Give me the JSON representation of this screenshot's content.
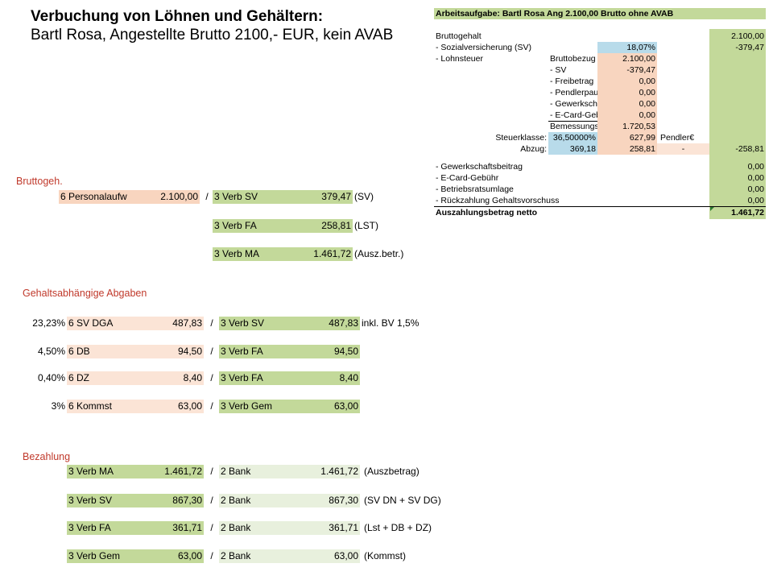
{
  "title": {
    "line1": "Verbuchung von Löhnen und Gehältern:",
    "line2": "Bartl Rosa, Angestellte Brutto 2100,- EUR, kein AVAB"
  },
  "colors": {
    "peach": "#f8d5bf",
    "green": "#c3d99a",
    "blue": "#b8dbea",
    "section": "#c0392b"
  },
  "bruttogehalt": {
    "heading": "Bruttogeh.",
    "debit": {
      "account": "6 Personalaufw",
      "amount": "2.100,00"
    },
    "sep": "/",
    "credits": [
      {
        "account": "3 Verb SV",
        "amount": "379,47",
        "note": "(SV)"
      },
      {
        "account": "3 Verb FA",
        "amount": "258,81",
        "note": "(LST)"
      },
      {
        "account": "3 Verb MA",
        "amount": "1.461,72",
        "note": "(Ausz.betr.)"
      }
    ]
  },
  "abgaben": {
    "heading": "Gehaltsabhängige Abgaben",
    "rows": [
      {
        "rate": "23,23%",
        "debit": "6 SV DGA",
        "debit_amount": "487,83",
        "sep": "/",
        "credit": "3 Verb SV",
        "credit_amount": "487,83",
        "note": "inkl. BV 1,5%"
      },
      {
        "rate": "4,50%",
        "debit": "6 DB",
        "debit_amount": "94,50",
        "sep": "/",
        "credit": "3 Verb FA",
        "credit_amount": "94,50",
        "note": ""
      },
      {
        "rate": "0,40%",
        "debit": "6 DZ",
        "debit_amount": "8,40",
        "sep": "/",
        "credit": "3 Verb FA",
        "credit_amount": "8,40",
        "note": ""
      },
      {
        "rate": "3%",
        "debit": "6 Kommst",
        "debit_amount": "63,00",
        "sep": "/",
        "credit": "3 Verb Gem",
        "credit_amount": "63,00",
        "note": ""
      }
    ]
  },
  "bezahlung": {
    "heading": "Bezahlung",
    "rows": [
      {
        "debit": "3 Verb MA",
        "debit_amount": "1.461,72",
        "sep": "/",
        "credit": "2 Bank",
        "credit_amount": "1.461,72",
        "note": "(Auszbetrag)"
      },
      {
        "debit": "3 Verb SV",
        "debit_amount": "867,30",
        "sep": "/",
        "credit": "2 Bank",
        "credit_amount": "867,30",
        "note": "(SV DN + SV DG)"
      },
      {
        "debit": "3 Verb FA",
        "debit_amount": "361,71",
        "sep": "/",
        "credit": "2 Bank",
        "credit_amount": "361,71",
        "note": "(Lst + DB + DZ)"
      },
      {
        "debit": "3 Verb Gem",
        "debit_amount": "63,00",
        "sep": "/",
        "credit": "2 Bank",
        "credit_amount": "63,00",
        "note": "(Kommst)"
      }
    ]
  },
  "worksheet": {
    "header": "Arbeitsaufgabe: Bartl Rosa Ang 2.100,00 Brutto ohne AVAB",
    "bruttogehalt_label": "Bruttogehalt",
    "bruttogehalt_value": "2.100,00",
    "sv_label": "- Sozialversicherung (SV)",
    "sv_rate": "18,07%",
    "sv_value": "-379,47",
    "lst_label": "- Lohnsteuer",
    "calc": [
      {
        "label": "Bruttobezug",
        "value": "2.100,00"
      },
      {
        "label": "- SV",
        "value": "-379,47"
      },
      {
        "label": "- Freibetrag",
        "value": "0,00"
      },
      {
        "label": "- Pendlerpauschale",
        "value": "0,00"
      },
      {
        "label": "- Gewerkschaft",
        "value": "0,00"
      },
      {
        "label": "- E-Card-Gebühr",
        "value": "0,00"
      },
      {
        "label": "Bemessungsgrundlage",
        "value": "1.720,53"
      }
    ],
    "steuerklasse_label": "Steuerklasse:",
    "steuerklasse_rate": "36,50000%",
    "steuerklasse_value": "627,99",
    "pendler_label": "Pendler€",
    "abzug_label": "Abzug:",
    "abzug_a": "369,18",
    "abzug_b": "258,81",
    "abzug_dash": "-",
    "abzug_value": "-258,81",
    "deductions": [
      {
        "label": "- Gewerkschaftsbeitrag",
        "value": "0,00"
      },
      {
        "label": "- E-Card-Gebühr",
        "value": "0,00"
      },
      {
        "label": "- Betriebsratsumlage",
        "value": "0,00"
      },
      {
        "label": "- Rückzahlung Gehaltsvorschuss",
        "value": "0,00"
      }
    ],
    "net_label": "Auszahlungsbetrag netto",
    "net_value": "1.461,72"
  }
}
